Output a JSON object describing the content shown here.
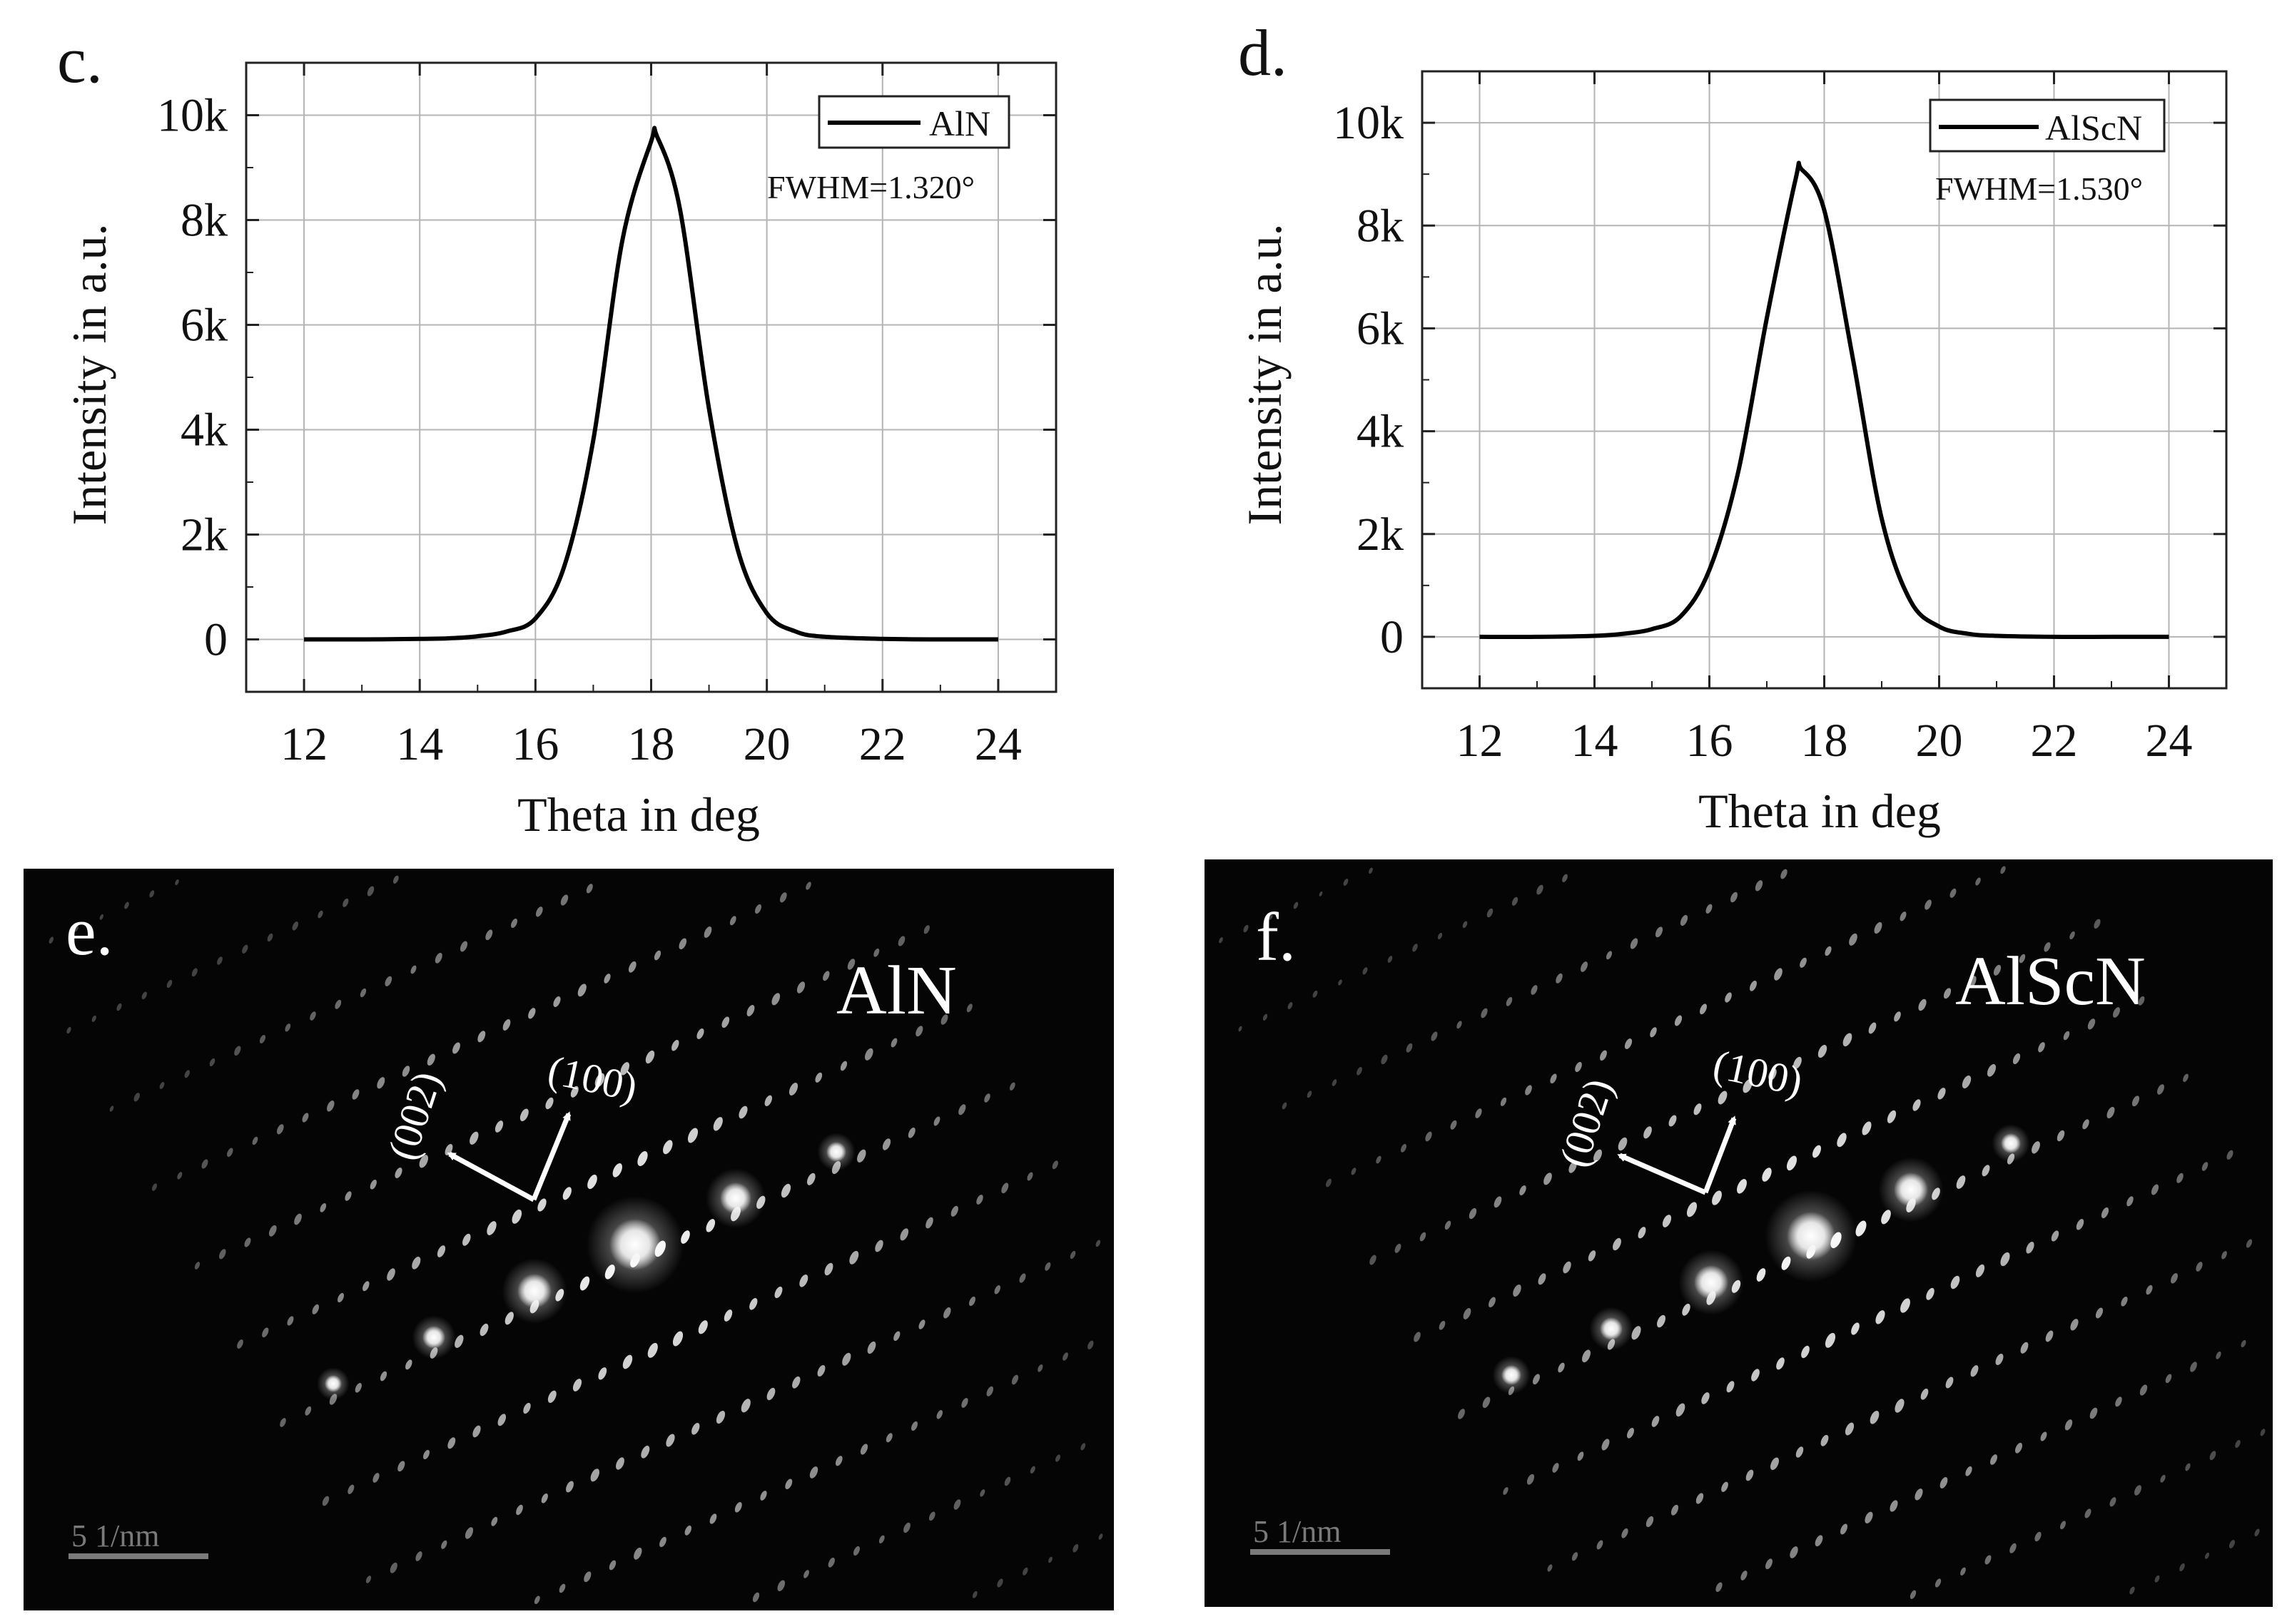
{
  "chart_data": [
    {
      "panel": "c.",
      "type": "line",
      "xlabel": "Theta in deg",
      "ylabel": "Intensity in a.u.",
      "xlim": [
        11,
        25
      ],
      "ylim": [
        -1000,
        11000
      ],
      "xticks": [
        12,
        14,
        16,
        18,
        20,
        22,
        24
      ],
      "yticks": [
        0,
        2000,
        4000,
        6000,
        8000,
        10000
      ],
      "ytick_labels": [
        "0",
        "2k",
        "4k",
        "6k",
        "8k",
        "10k"
      ],
      "grid": true,
      "legend": "top-right",
      "series": [
        {
          "name": "AlN",
          "x": [
            12,
            13,
            14,
            14.5,
            15,
            15.5,
            16,
            16.5,
            17,
            17.5,
            18,
            18.1,
            18.5,
            19,
            19.5,
            20,
            20.5,
            21,
            22,
            23,
            24
          ],
          "y": [
            0,
            0,
            10,
            20,
            60,
            150,
            400,
            1400,
            3800,
            7600,
            9500,
            9600,
            8200,
            4400,
            1700,
            500,
            150,
            50,
            10,
            0,
            0
          ]
        }
      ],
      "annotations": [
        "FWHM=1.320°"
      ]
    },
    {
      "panel": "d.",
      "type": "line",
      "xlabel": "Theta in deg",
      "ylabel": "Intensity in a.u.",
      "xlim": [
        11,
        25
      ],
      "ylim": [
        -1000,
        11000
      ],
      "xticks": [
        12,
        14,
        16,
        18,
        20,
        22,
        24
      ],
      "yticks": [
        0,
        2000,
        4000,
        6000,
        8000,
        10000
      ],
      "ytick_labels": [
        "0",
        "2k",
        "4k",
        "6k",
        "8k",
        "10k"
      ],
      "grid": true,
      "legend": "top-right",
      "series": [
        {
          "name": "AlScN",
          "x": [
            12,
            13,
            14,
            14.5,
            15,
            15.5,
            16,
            16.5,
            17,
            17.5,
            17.6,
            18,
            18.5,
            19,
            19.5,
            20,
            20.5,
            21,
            22,
            23,
            24
          ],
          "y": [
            0,
            0,
            20,
            60,
            150,
            400,
            1300,
            3200,
            6200,
            8900,
            9100,
            8300,
            5400,
            2300,
            700,
            200,
            60,
            20,
            0,
            0,
            0
          ]
        }
      ],
      "annotations": [
        "FWHM=1.530°"
      ]
    }
  ],
  "diffraction_panels": [
    {
      "panel": "e.",
      "material": "AlN",
      "labels": [
        "(002)",
        "(100)"
      ],
      "scale_bar": "5 1/nm"
    },
    {
      "panel": "f.",
      "material": "AlScN",
      "labels": [
        "(002)",
        "(100)"
      ],
      "scale_bar": "5 1/nm"
    }
  ],
  "colors": {
    "line": "#000000",
    "grid": "#b4b4b4",
    "sad_background": "#050505",
    "sad_spot": "#ffffff"
  }
}
